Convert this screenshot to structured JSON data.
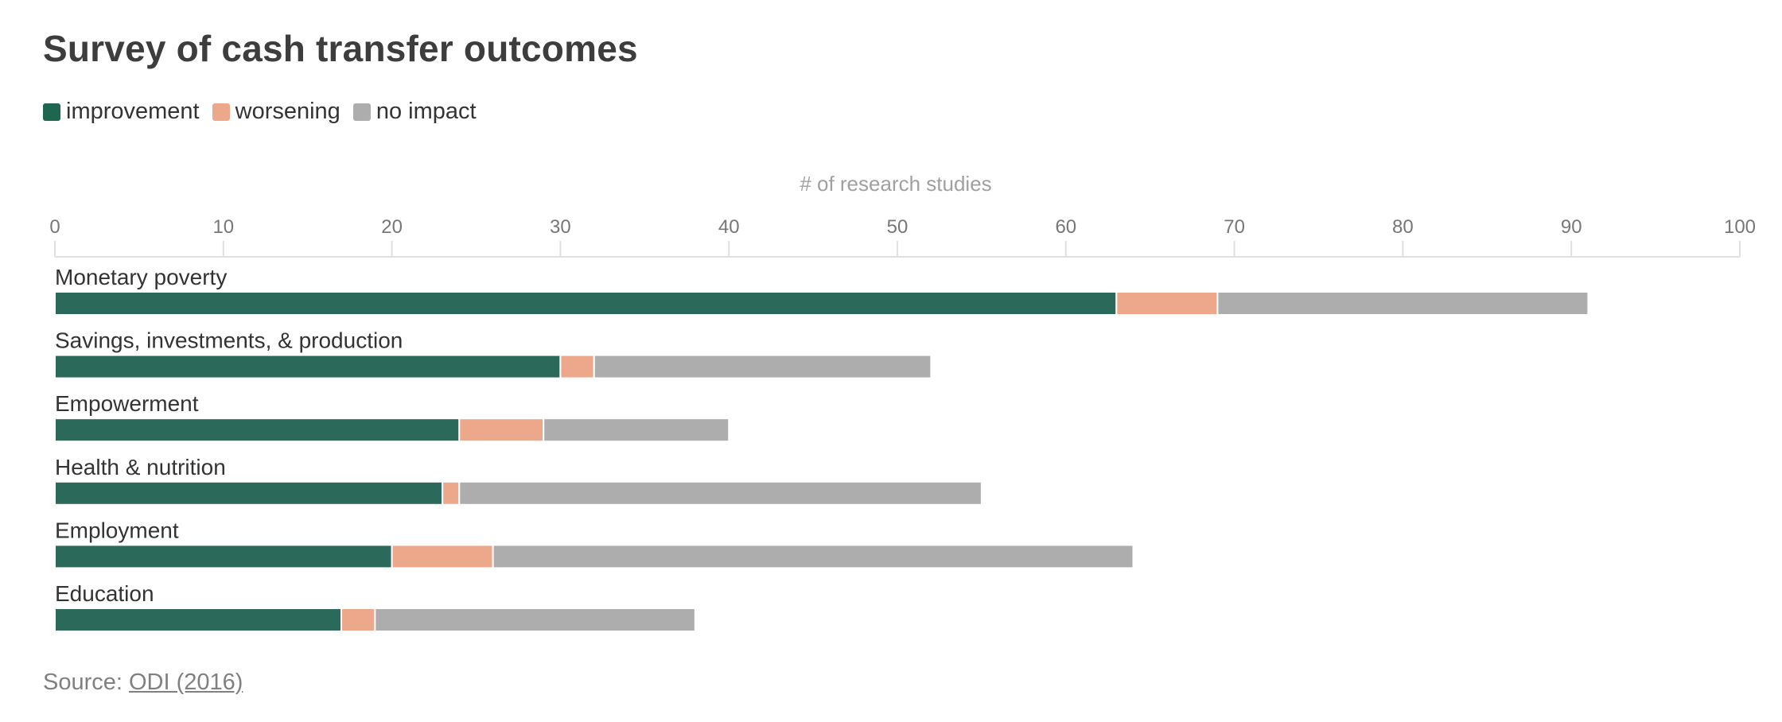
{
  "title": "Survey of cash transfer outcomes",
  "legend": [
    {
      "label": "improvement",
      "color": "#1f6650"
    },
    {
      "label": "worsening",
      "color": "#eda88c"
    },
    {
      "label": "no impact",
      "color": "#adadad"
    }
  ],
  "source": {
    "prefix": "Source: ",
    "link_text": "ODI (2016)"
  },
  "chart_data": {
    "type": "bar",
    "orientation": "horizontal",
    "stacked": true,
    "title": "Survey of cash transfer outcomes",
    "xlabel": "# of research studies",
    "ylabel": "",
    "xlim": [
      0,
      100
    ],
    "xticks": [
      0,
      10,
      20,
      30,
      40,
      50,
      60,
      70,
      80,
      90,
      100
    ],
    "grid": false,
    "legend_position": "top-left",
    "categories": [
      "Monetary poverty",
      "Savings, investments, & production",
      "Empowerment",
      "Health & nutrition",
      "Employment",
      "Education"
    ],
    "series": [
      {
        "name": "improvement",
        "color": "#2b6a5a",
        "values": [
          63,
          30,
          24,
          23,
          20,
          17
        ]
      },
      {
        "name": "worsening",
        "color": "#eda88c",
        "values": [
          6,
          2,
          5,
          1,
          6,
          2
        ]
      },
      {
        "name": "no impact",
        "color": "#adadad",
        "values": [
          22,
          20,
          11,
          31,
          38,
          19
        ]
      }
    ]
  }
}
